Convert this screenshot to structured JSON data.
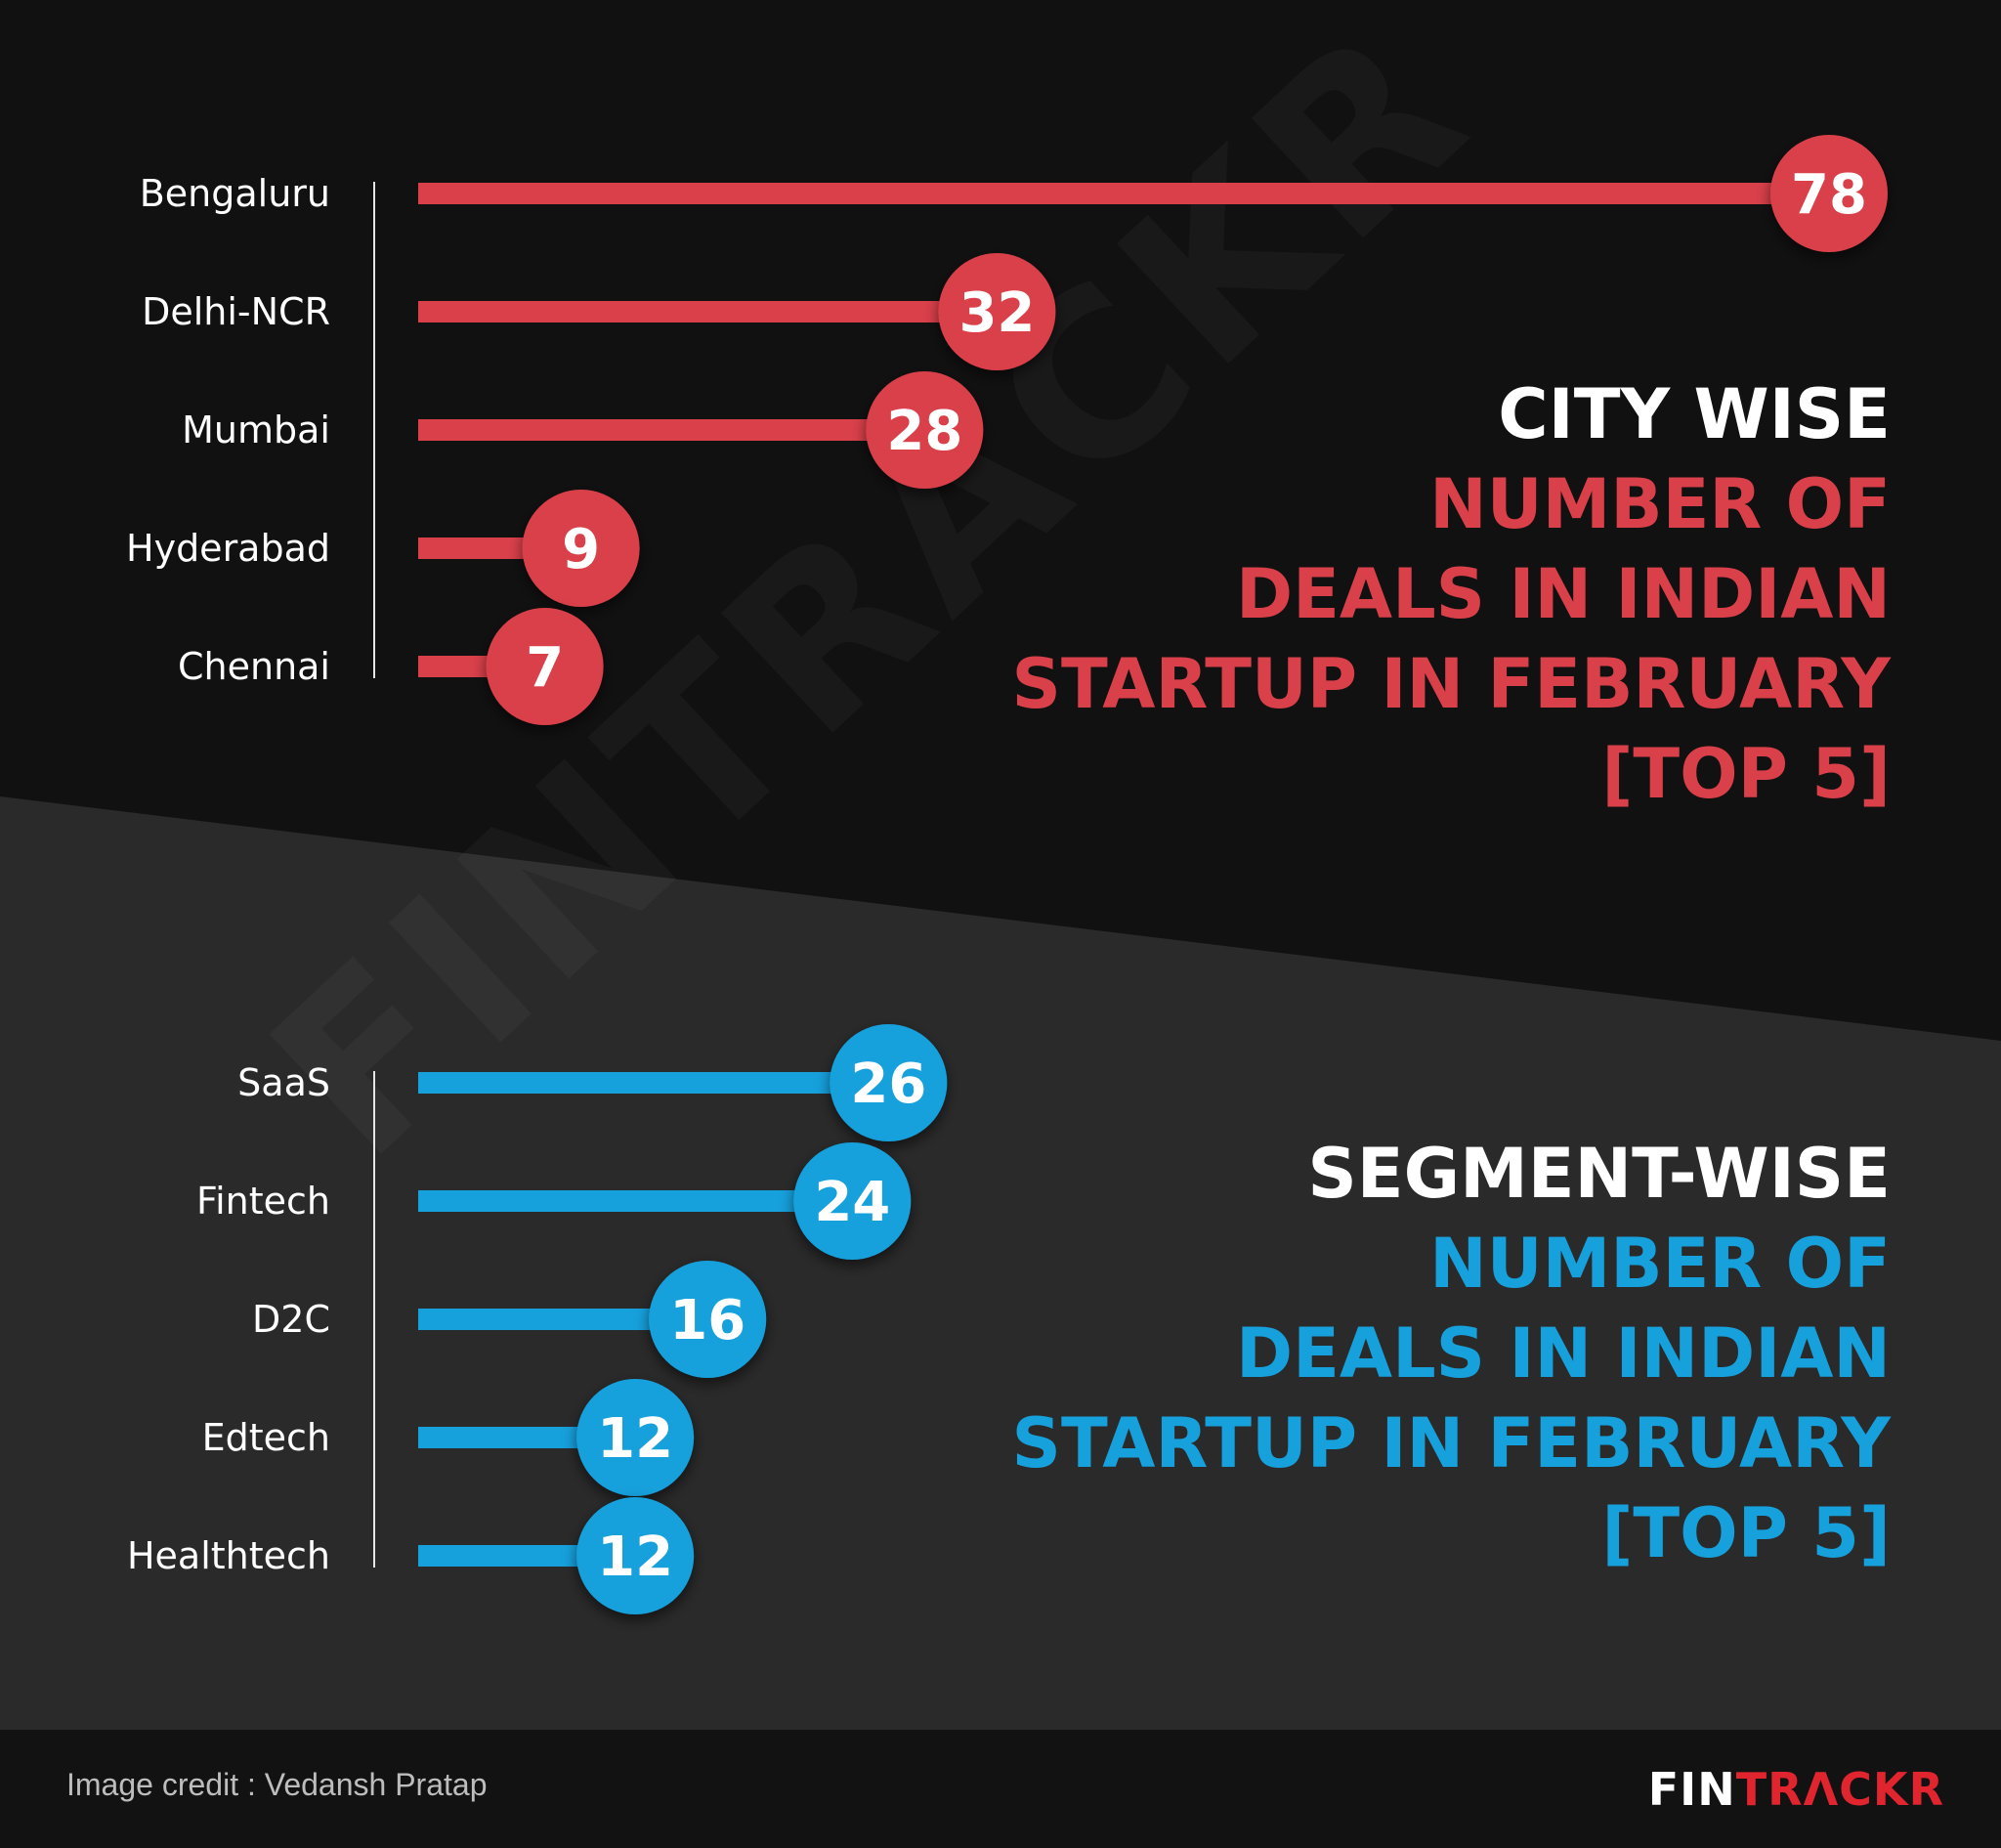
{
  "chart_data": [
    {
      "type": "bar",
      "orientation": "horizontal",
      "title": "CITY WISE NUMBER OF DEALS IN INDIAN STARTUP IN FEBRUARY [TOP 5]",
      "categories": [
        "Bengaluru",
        "Delhi-NCR",
        "Mumbai",
        "Hyderabad",
        "Chennai"
      ],
      "values": [
        78,
        32,
        28,
        9,
        7
      ],
      "value_labels": [
        "78",
        "32",
        "28",
        "9",
        "7"
      ],
      "color": "#d9404a",
      "xlim": [
        0,
        78
      ],
      "grid": false
    },
    {
      "type": "bar",
      "orientation": "horizontal",
      "title": "SEGMENT-WISE NUMBER OF DEALS IN INDIAN STARTUP IN FEBRUARY [TOP 5]",
      "categories": [
        "SaaS",
        "Fintech",
        "D2C",
        "Edtech",
        "Healthtech"
      ],
      "values": [
        26,
        24,
        16,
        12,
        12
      ],
      "value_labels": [
        "26",
        "24",
        "16",
        "12",
        "12"
      ],
      "color": "#16a0dc",
      "xlim": [
        0,
        78
      ],
      "grid": false
    }
  ],
  "headlines": {
    "city": {
      "line1": "CITY WISE",
      "line2": "NUMBER OF",
      "line3": "DEALS IN INDIAN",
      "line4": "STARTUP IN FEBRUARY",
      "line5": "[TOP 5]"
    },
    "segment": {
      "line1": "SEGMENT-WISE",
      "line2": "NUMBER OF",
      "line3": "DEALS IN INDIAN",
      "line4": "STARTUP IN FEBRUARY",
      "line5": "[TOP 5]"
    }
  },
  "watermark": "FINTRACKR",
  "footer": {
    "credit": "Image credit : Vedansh Pratap",
    "brand_part1": "FIN",
    "brand_part2": "TRΛCKR"
  },
  "colors": {
    "background_top": "#111111",
    "background_bottom": "#2a2a2a",
    "city_accent": "#d9404a",
    "segment_accent": "#16a0dc",
    "footer_bg": "#121212",
    "brand_red": "#e0252f"
  }
}
